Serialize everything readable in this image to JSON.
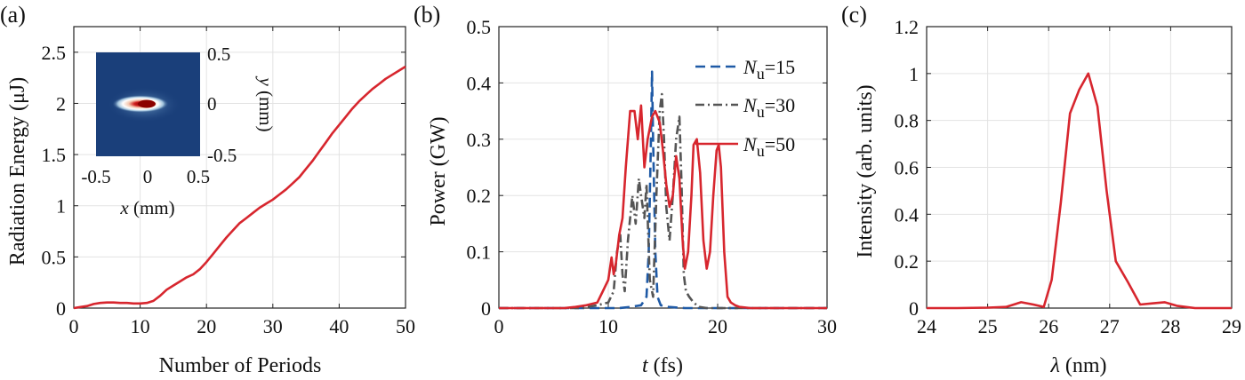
{
  "chart_data": [
    {
      "panel": "(a)",
      "type": "line",
      "xlabel": "Number of Periods",
      "ylabel": "Radiation Energy (μJ)",
      "xlim": [
        0,
        50
      ],
      "ylim": [
        0,
        2.75
      ],
      "xticks": [
        "0",
        "10",
        "20",
        "30",
        "40",
        "50"
      ],
      "yticks": [
        "0",
        "0.5",
        "1",
        "1.5",
        "2",
        "2.5"
      ],
      "grid": true,
      "color": "#d7262e",
      "series": [
        {
          "x": [
            0,
            1,
            2,
            3,
            4,
            5,
            6,
            7,
            8,
            9,
            10,
            11,
            12,
            13,
            14,
            15,
            16,
            17,
            18,
            19,
            20,
            21,
            22,
            23,
            24,
            25,
            26,
            27,
            28,
            29,
            30,
            31,
            32,
            33,
            34,
            35,
            36,
            37,
            38,
            39,
            40,
            41,
            42,
            43,
            44,
            45,
            46,
            47,
            48,
            49,
            50
          ],
          "y": [
            0,
            0.01,
            0.02,
            0.04,
            0.05,
            0.055,
            0.055,
            0.05,
            0.05,
            0.045,
            0.045,
            0.05,
            0.07,
            0.12,
            0.18,
            0.22,
            0.26,
            0.3,
            0.33,
            0.38,
            0.45,
            0.53,
            0.61,
            0.69,
            0.76,
            0.83,
            0.88,
            0.93,
            0.98,
            1.02,
            1.06,
            1.11,
            1.16,
            1.22,
            1.28,
            1.36,
            1.44,
            1.53,
            1.62,
            1.71,
            1.79,
            1.87,
            1.95,
            2.02,
            2.08,
            2.14,
            2.19,
            2.24,
            2.28,
            2.32,
            2.36
          ]
        }
      ],
      "inset": {
        "type": "heatmap",
        "xlabel": "x (mm)",
        "ylabel": "y (mm)",
        "xticks": [
          "-0.5",
          "0",
          "0.5"
        ],
        "yticks": [
          "0.5",
          "0",
          "-0.5"
        ],
        "xlim": [
          -0.5,
          0.5
        ],
        "ylim": [
          -0.5,
          0.5
        ],
        "colormap": [
          "#1a3f7a",
          "#ffffff",
          "#8b0000"
        ]
      }
    },
    {
      "panel": "(b)",
      "type": "line",
      "xlabel": "t (fs)",
      "ylabel": "Power (GW)",
      "xlim": [
        0,
        30
      ],
      "ylim": [
        0,
        0.5
      ],
      "xticks": [
        "0",
        "10",
        "20",
        "30"
      ],
      "yticks": [
        "0",
        "0.1",
        "0.2",
        "0.3",
        "0.4",
        "0.5"
      ],
      "grid": true,
      "legend_position": "top-right",
      "series": [
        {
          "name": "N_u=15",
          "label_main": "N",
          "label_sub": "u",
          "label_val": "=15",
          "color": "#1f5aa6",
          "dash": "dashed",
          "x": [
            0,
            11,
            12,
            13,
            13.5,
            13.7,
            13.9,
            14.0,
            14.1,
            14.3,
            14.5,
            14.8,
            15.5,
            17,
            30
          ],
          "y": [
            0,
            0,
            0.002,
            0.005,
            0.02,
            0.1,
            0.3,
            0.42,
            0.3,
            0.1,
            0.02,
            0.005,
            0.002,
            0,
            0
          ]
        },
        {
          "name": "N_u=30",
          "label_main": "N",
          "label_sub": "u",
          "label_val": "=30",
          "color": "#555555",
          "dash": "dashdot",
          "x": [
            0,
            7.5,
            9,
            10,
            10.5,
            10.8,
            11.1,
            11.3,
            11.5,
            11.8,
            12.0,
            12.2,
            12.5,
            12.8,
            13.0,
            13.3,
            13.5,
            13.8,
            14.1,
            14.4,
            14.7,
            14.9,
            15.1,
            15.3,
            15.6,
            15.9,
            16.2,
            16.5,
            16.7,
            16.9,
            17.1,
            17.4,
            17.8,
            18.3,
            19,
            30
          ],
          "y": [
            0,
            0,
            0.005,
            0.01,
            0.03,
            0.1,
            0.13,
            0.06,
            0.03,
            0.12,
            0.16,
            0.2,
            0.15,
            0.23,
            0.2,
            0.16,
            0.22,
            0.05,
            0.02,
            0.2,
            0.35,
            0.38,
            0.3,
            0.18,
            0.12,
            0.2,
            0.3,
            0.34,
            0.22,
            0.06,
            0.03,
            0.02,
            0.01,
            0.002,
            0,
            0
          ]
        },
        {
          "name": "N_u=50",
          "label_main": "N",
          "label_sub": "u",
          "label_val": "=50",
          "color": "#d7262e",
          "dash": "solid",
          "x": [
            0,
            6,
            7,
            8,
            9,
            9.5,
            10,
            10.3,
            10.5,
            10.7,
            11,
            11.3,
            11.6,
            12,
            12.4,
            12.7,
            13,
            13.3,
            13.6,
            14,
            14.3,
            14.7,
            15,
            15.3,
            15.6,
            15.9,
            16.2,
            16.5,
            16.8,
            17.0,
            17.3,
            17.6,
            17.8,
            18.1,
            18.4,
            18.7,
            19.0,
            19.3,
            19.6,
            19.9,
            20.1,
            20.3,
            20.6,
            20.9,
            21.2,
            21.6,
            22,
            23,
            30
          ],
          "y": [
            0,
            0,
            0.002,
            0.005,
            0.01,
            0.03,
            0.05,
            0.09,
            0.06,
            0.08,
            0.13,
            0.16,
            0.25,
            0.35,
            0.35,
            0.3,
            0.36,
            0.25,
            0.3,
            0.34,
            0.35,
            0.33,
            0.28,
            0.22,
            0.18,
            0.2,
            0.27,
            0.23,
            0.12,
            0.07,
            0.1,
            0.2,
            0.29,
            0.3,
            0.24,
            0.12,
            0.07,
            0.1,
            0.2,
            0.28,
            0.29,
            0.25,
            0.1,
            0.02,
            0.01,
            0.005,
            0.002,
            0,
            0
          ]
        }
      ]
    },
    {
      "panel": "(c)",
      "type": "line",
      "xlabel": "λ (nm)",
      "ylabel": "Intensity (arb. units)",
      "xlim": [
        24,
        29
      ],
      "ylim": [
        0,
        1.2
      ],
      "xticks": [
        "24",
        "25",
        "26",
        "27",
        "28",
        "29"
      ],
      "yticks": [
        "0",
        "0.2",
        "0.4",
        "0.6",
        "0.8",
        "1",
        "1.2"
      ],
      "grid": true,
      "color": "#d7262e",
      "series": [
        {
          "x": [
            24,
            24.5,
            25,
            25.3,
            25.55,
            25.75,
            25.92,
            26.05,
            26.2,
            26.35,
            26.5,
            26.65,
            26.8,
            26.95,
            27.1,
            27.3,
            27.5,
            27.7,
            27.9,
            28.1,
            28.4,
            29
          ],
          "y": [
            0,
            0,
            0.002,
            0.005,
            0.025,
            0.015,
            0.005,
            0.12,
            0.45,
            0.83,
            0.93,
            1.0,
            0.86,
            0.5,
            0.2,
            0.11,
            0.015,
            0.02,
            0.025,
            0.01,
            0,
            0
          ]
        }
      ]
    }
  ]
}
